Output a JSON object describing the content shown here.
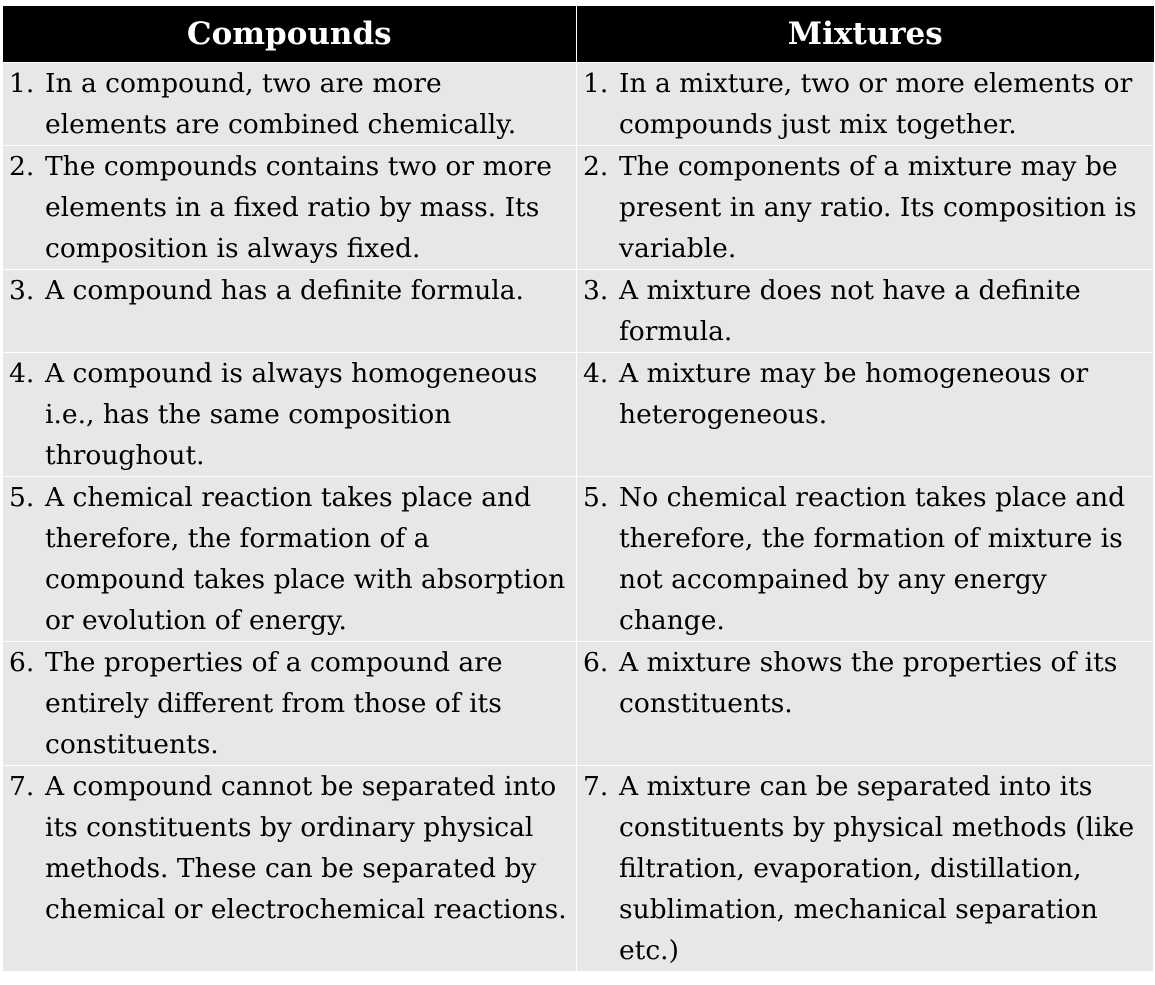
{
  "headers": {
    "left": "Compounds",
    "right": "Mixtures"
  },
  "rows": [
    {
      "left": {
        "num": "1.",
        "text": "In a compound, two are more elements are combined chemically."
      },
      "right": {
        "num": "1.",
        "text": "In a mixture, two or more elements or compounds just mix together."
      }
    },
    {
      "left": {
        "num": "2.",
        "text": "The compounds contains two or more elements in a fixed ratio by mass. Its composition is always fixed."
      },
      "right": {
        "num": "2.",
        "text": "The components of a mixture may be present in any ratio. Its composition is variable."
      }
    },
    {
      "left": {
        "num": "3.",
        "text": "A compound has a definite formula."
      },
      "right": {
        "num": "3.",
        "text": "A mixture does not have a definite formula."
      }
    },
    {
      "left": {
        "num": "4.",
        "text": "A compound is always homogeneous i.e., has the same composition throughout."
      },
      "right": {
        "num": "4.",
        "text": "A mixture may be homogeneous or heterogeneous."
      }
    },
    {
      "left": {
        "num": "5.",
        "text": "A chemical reaction takes place and therefore, the formation of a compound takes place with absorption or evolution of energy."
      },
      "right": {
        "num": "5.",
        "text": "No chemical reaction takes place and therefore, the formation of mixture is not accompained by any energy change."
      }
    },
    {
      "left": {
        "num": "6.",
        "text": "The properties of a compound are entirely different from those of its constituents."
      },
      "right": {
        "num": "6.",
        "text": "A mixture shows the properties of its constituents."
      }
    },
    {
      "left": {
        "num": "7.",
        "text": "A compound cannot be separated into its constituents by ordinary physical methods. These can be separated by chemical or electrochemical reactions."
      },
      "right": {
        "num": "7.",
        "text": "A mixture can be separated into its constituents by physical methods (like filtration, evaporation, distillation, sublimation, mechanical separation etc.)"
      }
    }
  ]
}
